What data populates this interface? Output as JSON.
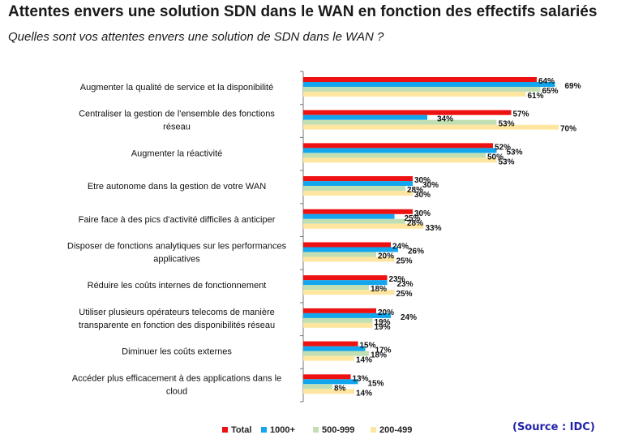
{
  "header": {
    "title": "Attentes envers une solution SDN dans le WAN en fonction des effectifs salariés",
    "subtitle": "Quelles sont vos attentes envers une solution de SDN dans le WAN ?"
  },
  "source": "(Source : IDC)",
  "colors": {
    "Total": "#ee1111",
    "1000+": "#11a6ee",
    "500-999": "#c2dfb4",
    "200-499": "#ffe6a0"
  },
  "chart_data": {
    "type": "bar",
    "orientation": "horizontal",
    "categories": [
      "Augmenter la qualité de service et la disponibilité",
      "Centraliser la gestion de l'ensemble des fonctions réseau",
      "Augmenter la réactivité",
      "Etre autonome dans la gestion de votre WAN",
      "Faire face à des pics d'activité difficiles à anticiper",
      "Disposer de fonctions analytiques sur les performances applicatives",
      "Réduire les coûts internes de fonctionnement",
      "Utiliser plusieurs opérateurs telecoms de manière transparente en fonction des disponibilités réseau",
      "Diminuer les coûts externes",
      "Accéder plus efficacement à des applications dans le cloud"
    ],
    "series": [
      {
        "name": "Total",
        "values": [
          64,
          57,
          52,
          30,
          30,
          24,
          23,
          20,
          15,
          13
        ]
      },
      {
        "name": "1000+",
        "values": [
          69,
          34,
          53,
          30,
          25,
          26,
          23,
          24,
          17,
          15
        ]
      },
      {
        "name": "500-999",
        "values": [
          65,
          53,
          50,
          28,
          28,
          20,
          18,
          19,
          18,
          8
        ]
      },
      {
        "name": "200-499",
        "values": [
          61,
          70,
          53,
          30,
          33,
          25,
          25,
          19,
          14,
          14
        ]
      }
    ],
    "value_suffix": "%",
    "xlim": [
      0,
      100
    ],
    "legend_position": "bottom"
  }
}
